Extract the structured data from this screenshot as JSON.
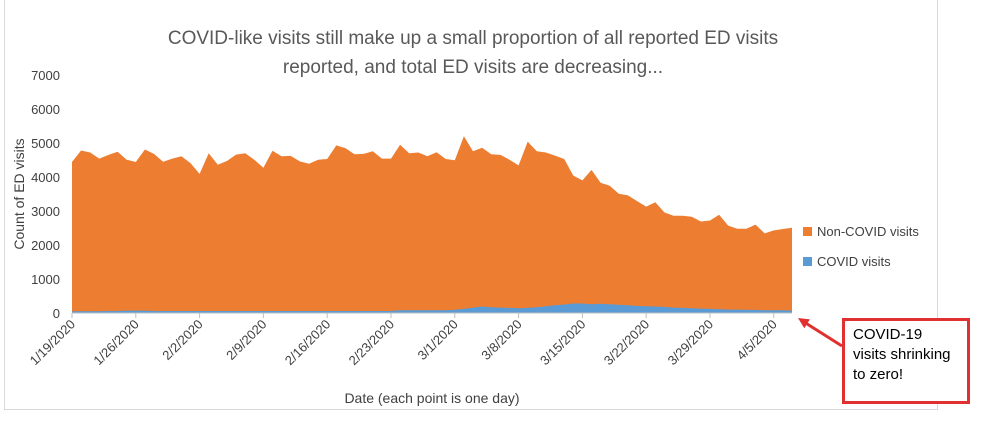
{
  "chart_data": {
    "type": "area",
    "title_lines": [
      "COVID-like visits still make up a small proportion of all reported ED visits",
      "reported, and total ED visits are decreasing..."
    ],
    "xlabel": "Date (each point is one day)",
    "ylabel": "Count of ED visits",
    "ylim": [
      0,
      7000
    ],
    "yticks": [
      "0",
      "1000",
      "2000",
      "3000",
      "4000",
      "5000",
      "6000",
      "7000"
    ],
    "x_start": "1/19/2020",
    "x_end": "4/6/2020",
    "xtick_labels": [
      "1/19/2020",
      "1/26/2020",
      "2/2/2020",
      "2/9/2020",
      "2/16/2020",
      "2/23/2020",
      "3/1/2020",
      "3/8/2020",
      "3/15/2020",
      "3/22/2020",
      "3/29/2020",
      "4/5/2020"
    ],
    "legend_position": "right",
    "stacked": true,
    "series": [
      {
        "name": "COVID visits",
        "color": "#5b9bd5",
        "values": [
          50,
          50,
          50,
          50,
          60,
          60,
          70,
          70,
          70,
          60,
          60,
          60,
          60,
          60,
          60,
          60,
          60,
          60,
          60,
          60,
          60,
          60,
          60,
          60,
          60,
          60,
          60,
          60,
          60,
          60,
          60,
          60,
          60,
          60,
          60,
          60,
          80,
          80,
          80,
          80,
          80,
          80,
          90,
          120,
          160,
          190,
          170,
          160,
          150,
          140,
          150,
          170,
          200,
          230,
          250,
          280,
          280,
          260,
          270,
          260,
          240,
          230,
          210,
          200,
          190,
          180,
          160,
          150,
          140,
          130,
          120,
          110,
          100,
          100,
          90,
          90,
          80,
          80,
          80,
          70
        ]
      },
      {
        "name": "Non-COVID visits",
        "color": "#ed7d31",
        "values": [
          4390,
          4730,
          4670,
          4490,
          4590,
          4680,
          4440,
          4370,
          4740,
          4620,
          4390,
          4480,
          4550,
          4350,
          4030,
          4640,
          4300,
          4410,
          4600,
          4640,
          4450,
          4210,
          4710,
          4550,
          4560,
          4400,
          4330,
          4450,
          4470,
          4870,
          4790,
          4610,
          4620,
          4700,
          4480,
          4480,
          4870,
          4620,
          4640,
          4530,
          4650,
          4450,
          4400,
          5080,
          4600,
          4670,
          4500,
          4490,
          4360,
          4200,
          4890,
          4590,
          4520,
          4400,
          4280,
          3760,
          3620,
          3950,
          3560,
          3480,
          3270,
          3230,
          3080,
          2930,
          3070,
          2780,
          2700,
          2710,
          2690,
          2560,
          2600,
          2780,
          2470,
          2380,
          2390,
          2510,
          2260,
          2350,
          2390,
          2440
        ]
      }
    ]
  },
  "callout": {
    "text": "COVID-19 visits shrinking to zero!",
    "border_color": "#e03030"
  }
}
